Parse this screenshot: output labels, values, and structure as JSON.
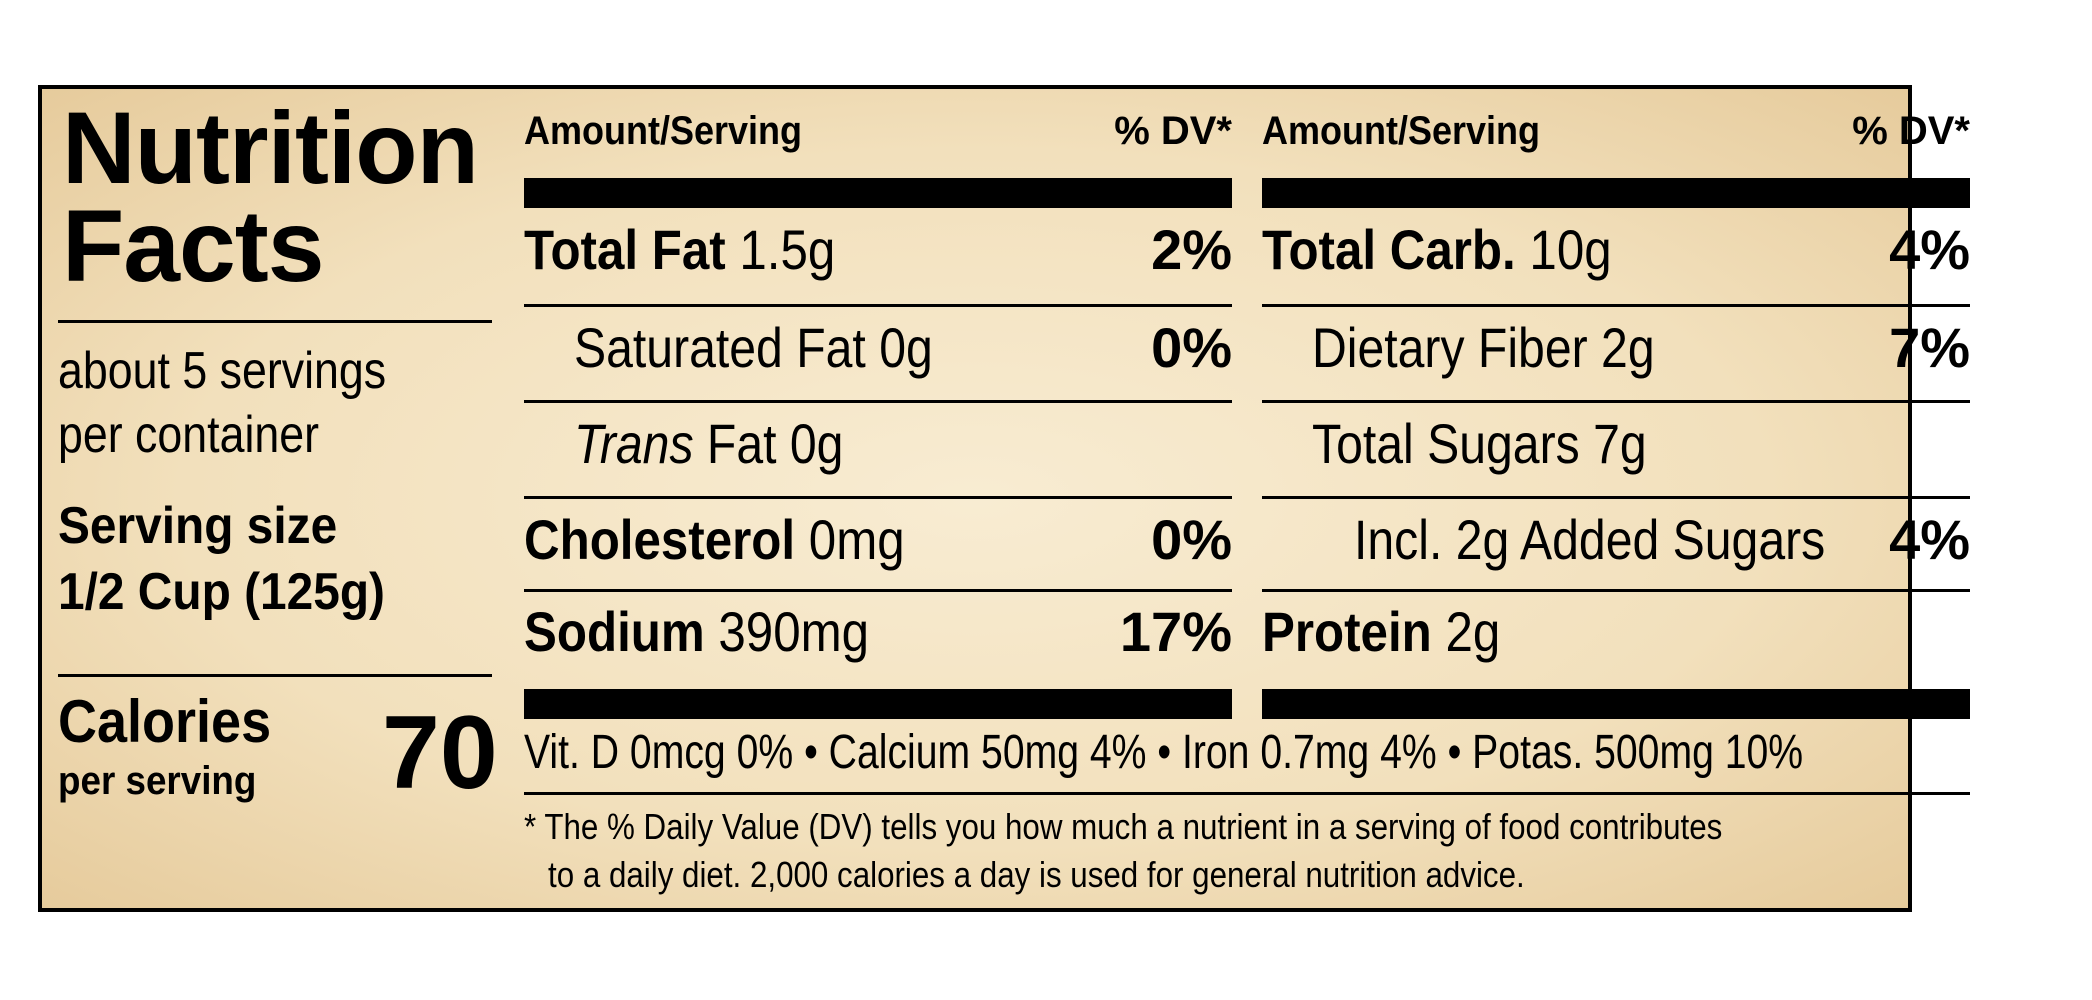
{
  "title_line1": "Nutrition",
  "title_line2": "Facts",
  "servings_line1": "about 5 servings",
  "servings_line2": "per container",
  "serving_size_label": "Serving size",
  "serving_size_value": "1/2 Cup (125g)",
  "calories_label": "Calories",
  "calories_sub": "per serving",
  "calories_value": "70",
  "header_amount": "Amount/Serving",
  "header_dv": "% DV*",
  "left_rows": [
    {
      "name": "Total Fat",
      "amount": "1.5g",
      "dv": "2%"
    },
    {
      "name": "Saturated Fat",
      "amount": "0g",
      "dv": "0%"
    },
    {
      "name_italic": "Trans",
      "name": "Fat",
      "amount": "0g",
      "dv": ""
    },
    {
      "name": "Cholesterol",
      "amount": "0mg",
      "dv": "0%"
    },
    {
      "name": "Sodium",
      "amount": "390mg",
      "dv": "17%"
    }
  ],
  "right_rows": [
    {
      "name": "Total Carb.",
      "amount": "10g",
      "dv": "4%"
    },
    {
      "name": "Dietary Fiber",
      "amount": "2g",
      "dv": "7%"
    },
    {
      "name": "Total Sugars",
      "amount": "7g",
      "dv": ""
    },
    {
      "name": "Incl. 2g Added Sugars",
      "amount": "",
      "dv": "4%"
    },
    {
      "name": "Protein",
      "amount": "2g",
      "dv": ""
    }
  ],
  "vitamins": "Vit. D 0mcg 0% • Calcium 50mg 4% • Iron 0.7mg 4% • Potas. 500mg 10%",
  "footnote_line1": "* The % Daily Value (DV) tells you how much a nutrient in a serving of food contributes",
  "footnote_line2": "to a daily diet. 2,000  calories a day is used for general nutrition advice."
}
